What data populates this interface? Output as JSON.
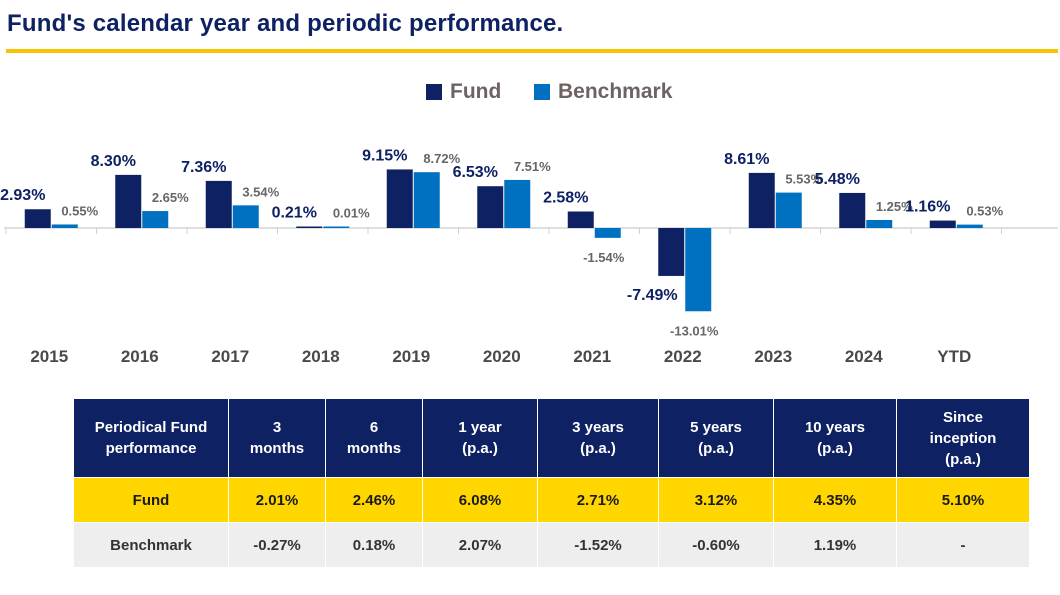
{
  "page": {
    "title": "Fund's calendar year and periodic performance."
  },
  "colors": {
    "fund": "#0e2163",
    "benchmark": "#0070c0",
    "accent": "#f5c400",
    "fund_row": "#ffd600",
    "bench_row": "#eeeeee"
  },
  "chart_data": {
    "type": "bar",
    "categories": [
      "2015",
      "2016",
      "2017",
      "2018",
      "2019",
      "2020",
      "2021",
      "2022",
      "2023",
      "2024",
      "YTD"
    ],
    "series": [
      {
        "name": "Fund",
        "values": [
          2.93,
          8.3,
          7.36,
          0.21,
          9.15,
          6.53,
          2.58,
          -7.49,
          8.61,
          5.48,
          1.16
        ],
        "labels": [
          "2.93%",
          "8.30%",
          "7.36%",
          "0.21%",
          "9.15%",
          "6.53%",
          "2.58%",
          "-7.49%",
          "8.61%",
          "5.48%",
          "1.16%"
        ]
      },
      {
        "name": "Benchmark",
        "values": [
          0.55,
          2.65,
          3.54,
          0.01,
          8.72,
          7.51,
          -1.54,
          -13.01,
          5.53,
          1.25,
          0.53
        ],
        "labels": [
          "0.55%",
          "2.65%",
          "3.54%",
          "0.01%",
          "8.72%",
          "7.51%",
          "-1.54%",
          "-13.01%",
          "5.53%",
          "1.25%",
          "0.53%"
        ]
      }
    ],
    "legend": "top-center",
    "grid": false
  },
  "table": {
    "headers": [
      "Periodical Fund\nperformance",
      "3\nmonths",
      "6\nmonths",
      "1 year\n(p.a.)",
      "3 years\n(p.a.)",
      "5 years\n(p.a.)",
      "10 years\n(p.a.)",
      "Since\ninception\n(p.a.)"
    ],
    "rows": [
      {
        "label": "Fund",
        "values": [
          "2.01%",
          "2.46%",
          "6.08%",
          "2.71%",
          "3.12%",
          "4.35%",
          "5.10%"
        ]
      },
      {
        "label": "Benchmark",
        "values": [
          "-0.27%",
          "0.18%",
          "2.07%",
          "-1.52%",
          "-0.60%",
          "1.19%",
          "-"
        ]
      }
    ]
  }
}
